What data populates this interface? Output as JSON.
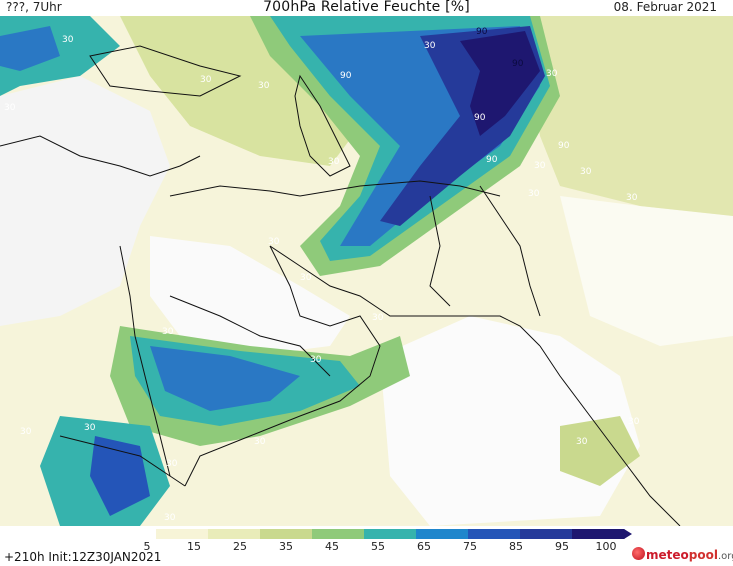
{
  "header": {
    "left": "???, 7Uhr",
    "title": "700hPa Relative Feuchte [%]",
    "date": "08. Februar 2021"
  },
  "footer": {
    "run_info": "+210h  Init:12Z30JAN2021"
  },
  "colorbar": {
    "labels": [
      "5",
      "15",
      "25",
      "35",
      "45",
      "55",
      "65",
      "75",
      "85",
      "95",
      "100"
    ],
    "colors": [
      "#ffffff",
      "#f7f4d7",
      "#e9ecb9",
      "#c9d98e",
      "#8fca7a",
      "#36b3ad",
      "#1f86cc",
      "#2455b8",
      "#253a9a",
      "#1e1770"
    ]
  },
  "contour_labels": [
    "90",
    "90",
    "90",
    "90",
    "90",
    "90",
    "30",
    "30",
    "30",
    "30",
    "30",
    "30",
    "30",
    "30",
    "30",
    "30",
    "30",
    "30",
    "30",
    "30",
    "30",
    "30",
    "30",
    "30",
    "30",
    "30",
    "30",
    "30",
    "30"
  ],
  "logo": {
    "brand_a": "meteo",
    "brand_b": "pool",
    "brand_c": ".org"
  }
}
